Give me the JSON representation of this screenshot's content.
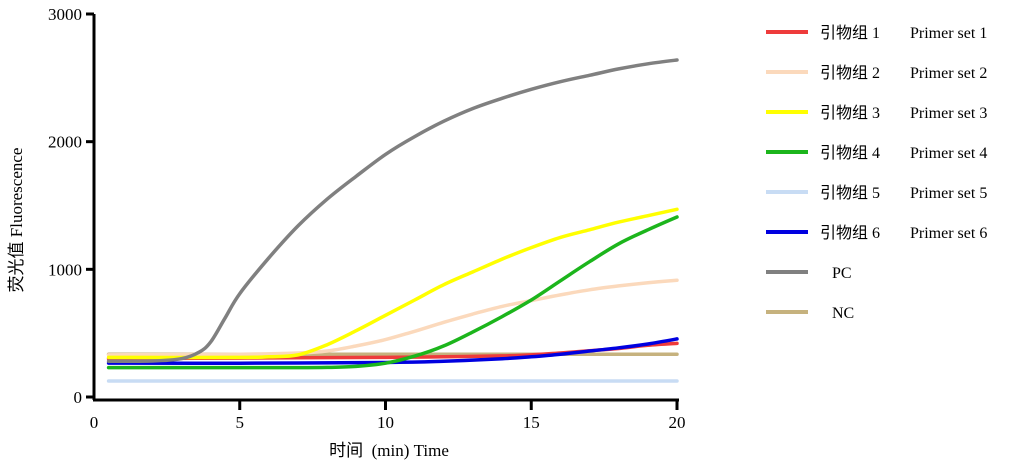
{
  "chart_data": {
    "type": "line",
    "title": "",
    "xlabel": "时间  (min) Time",
    "ylabel": "荧光值 Fluorescence",
    "xlim": [
      0,
      20
    ],
    "ylim": [
      0,
      3000
    ],
    "x_ticks": [
      "0",
      "5",
      "10",
      "15",
      "20"
    ],
    "y_ticks": [
      "0",
      "1000",
      "2000",
      "3000"
    ],
    "grid": false,
    "legend_position": "right",
    "series": [
      {
        "name": "引物组 1",
        "name_en": "Primer set 1",
        "color": "#ee3b3b",
        "x": [
          0.5,
          5,
          10,
          12,
          14,
          15,
          16,
          17,
          18,
          19,
          20
        ],
        "y": [
          300,
          305,
          310,
          315,
          322,
          330,
          345,
          362,
          380,
          405,
          420
        ]
      },
      {
        "name": "引物组 2",
        "name_en": "Primer set 2",
        "color": "#fbd9bc",
        "x": [
          0.5,
          5,
          7,
          8,
          9,
          10,
          11,
          12,
          13,
          14,
          15,
          16,
          17,
          18,
          19,
          20
        ],
        "y": [
          330,
          335,
          345,
          360,
          400,
          450,
          515,
          585,
          650,
          710,
          755,
          800,
          840,
          870,
          895,
          915
        ]
      },
      {
        "name": "引物组 3",
        "name_en": "Primer set 3",
        "color": "#ffff00",
        "x": [
          0.5,
          5,
          6,
          7,
          8,
          9,
          10,
          11,
          12,
          13,
          14,
          15,
          16,
          17,
          18,
          19,
          20
        ],
        "y": [
          310,
          310,
          315,
          330,
          410,
          520,
          640,
          760,
          880,
          980,
          1080,
          1170,
          1250,
          1310,
          1370,
          1420,
          1470
        ]
      },
      {
        "name": "引物组 4",
        "name_en": "Primer set 4",
        "color": "#1cb51c",
        "x": [
          0.5,
          5,
          7,
          8,
          9,
          10,
          11,
          12,
          13,
          14,
          15,
          16,
          17,
          18,
          19,
          20
        ],
        "y": [
          230,
          230,
          230,
          232,
          240,
          265,
          320,
          400,
          510,
          630,
          760,
          910,
          1060,
          1200,
          1310,
          1410
        ]
      },
      {
        "name": "引物组 5",
        "name_en": "Primer set 5",
        "color": "#c8dcf4",
        "x": [
          0.5,
          20
        ],
        "y": [
          125,
          125
        ]
      },
      {
        "name": "引物组 6",
        "name_en": "Primer set 6",
        "color": "#0000e0",
        "x": [
          0.5,
          5,
          10,
          12,
          14,
          15,
          16,
          17,
          18,
          19,
          20
        ],
        "y": [
          265,
          265,
          270,
          280,
          300,
          315,
          335,
          360,
          385,
          415,
          455
        ]
      },
      {
        "name": "PC",
        "name_en": "",
        "color": "#808080",
        "x": [
          0.5,
          2,
          3,
          3.6,
          4,
          4.5,
          5,
          6,
          7,
          8,
          9,
          10,
          11,
          12,
          13,
          14,
          15,
          16,
          17,
          18,
          19,
          20
        ],
        "y": [
          280,
          282,
          300,
          350,
          430,
          620,
          810,
          1090,
          1340,
          1550,
          1730,
          1900,
          2040,
          2160,
          2260,
          2340,
          2410,
          2470,
          2520,
          2570,
          2610,
          2640
        ]
      },
      {
        "name": "NC",
        "name_en": "",
        "color": "#c6b27e",
        "x": [
          0.5,
          20
        ],
        "y": [
          335,
          335
        ]
      }
    ]
  }
}
